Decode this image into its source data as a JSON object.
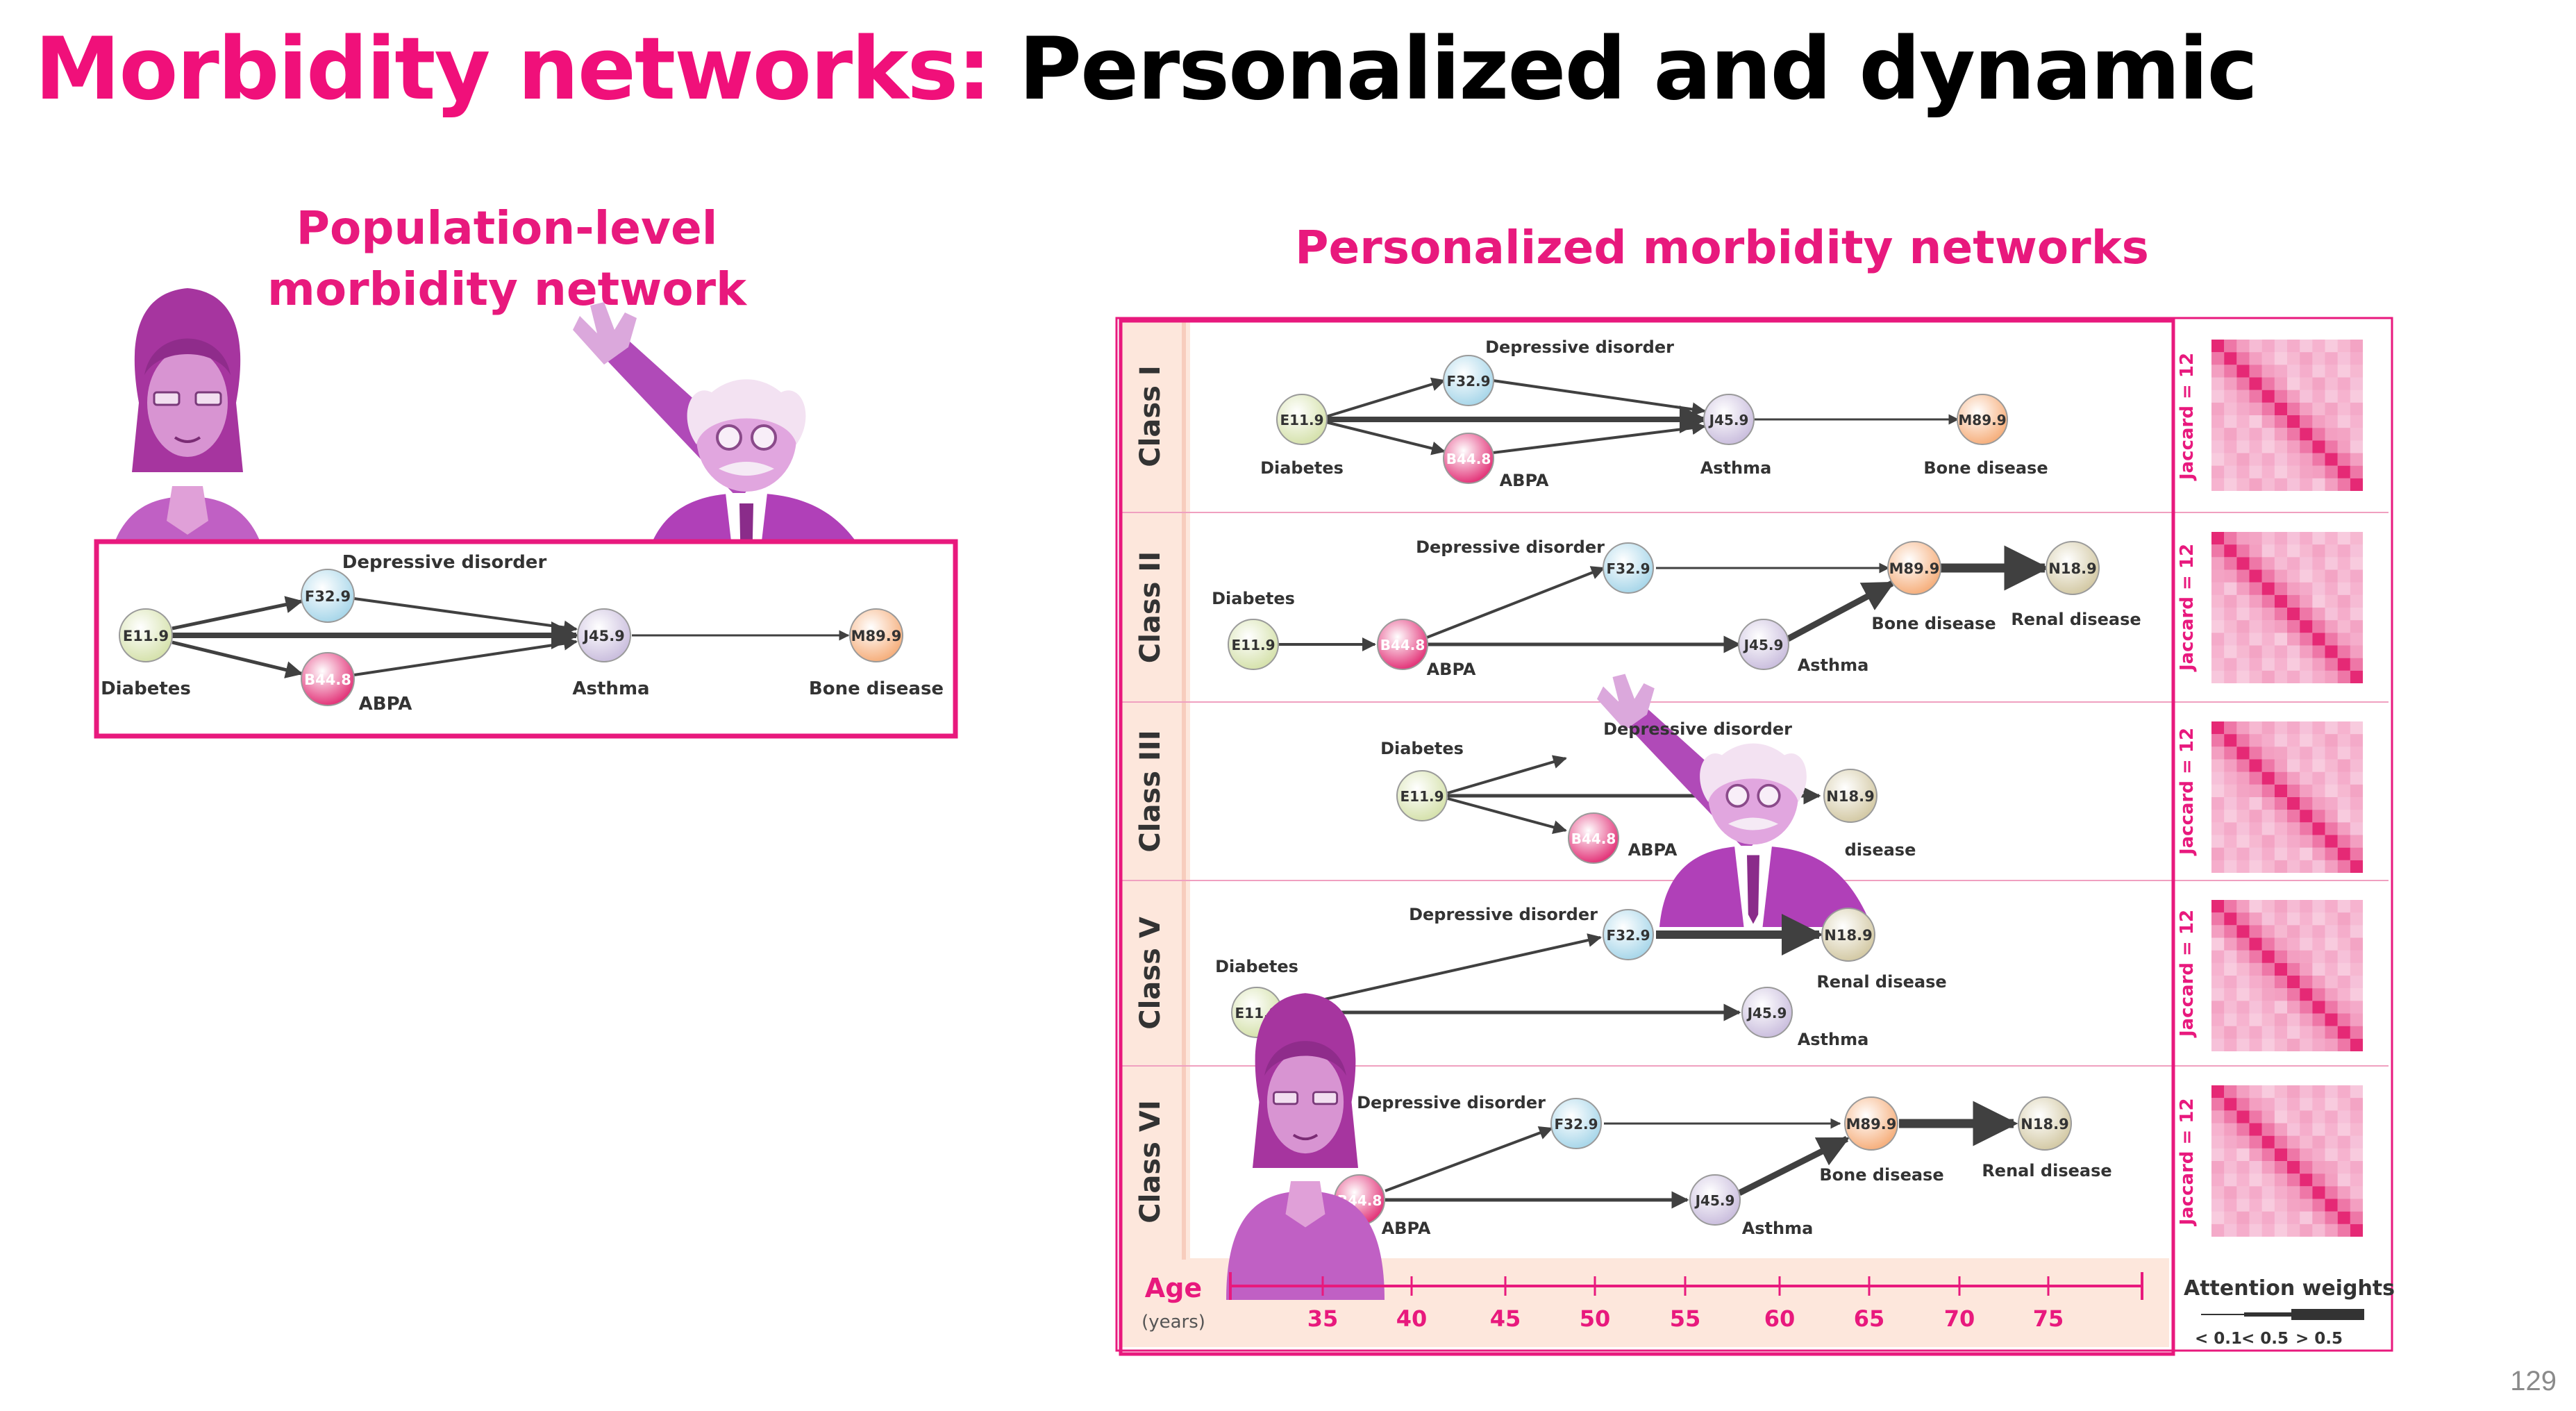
{
  "title": {
    "prefix": "Morbidity networks:",
    "suffix": "Personalized and dynamic"
  },
  "population": {
    "heading_line1": "Population-level",
    "heading_line2": "morbidity network",
    "nodes": [
      {
        "code": "E11.9",
        "label": "Diabetes",
        "color": "#dfe8bf"
      },
      {
        "code": "F32.9",
        "label": "Depressive disorder",
        "color": "#bfe2ee"
      },
      {
        "code": "B44.8",
        "label": "ABPA",
        "color": "#e84c86"
      },
      {
        "code": "J45.9",
        "label": "Asthma",
        "color": "#d8cde4"
      },
      {
        "code": "M89.9",
        "label": "Bone disease",
        "color": "#f8c49e"
      }
    ]
  },
  "personalized": {
    "heading": "Personalized morbidity networks",
    "classes": [
      {
        "label": "Class I",
        "jaccard": "Jaccard = 12"
      },
      {
        "label": "Class II",
        "jaccard": "Jaccard = 12"
      },
      {
        "label": "Class III",
        "jaccard": "Jaccard = 12"
      },
      {
        "label": "Class V",
        "jaccard": "Jaccard = 12"
      },
      {
        "label": "Class VI",
        "jaccard": "Jaccard = 12"
      }
    ],
    "codes": {
      "e11": "E11.9",
      "f32": "F32.9",
      "b44": "B44.8",
      "j45": "J45.9",
      "m89": "M89.9",
      "n18": "N18.9"
    },
    "labels": {
      "diabetes": "Diabetes",
      "depressive": "Depressive disorder",
      "abpa": "ABPA",
      "asthma": "Asthma",
      "bone": "Bone disease",
      "renal": "Renal disease",
      "disease_partial": "disease"
    },
    "age_axis": {
      "label": "Age",
      "unit": "(years)",
      "ticks": [
        "35",
        "40",
        "45",
        "50",
        "55",
        "60",
        "65",
        "70",
        "75"
      ]
    },
    "legend": {
      "title": "Attention weights",
      "ranges": [
        "< 0.1",
        "< 0.5",
        "> 0.5"
      ]
    }
  },
  "colors": {
    "pink": "#e8197d",
    "band": "#fde7dc",
    "purple": "#b53bbe"
  },
  "page_number": "129"
}
